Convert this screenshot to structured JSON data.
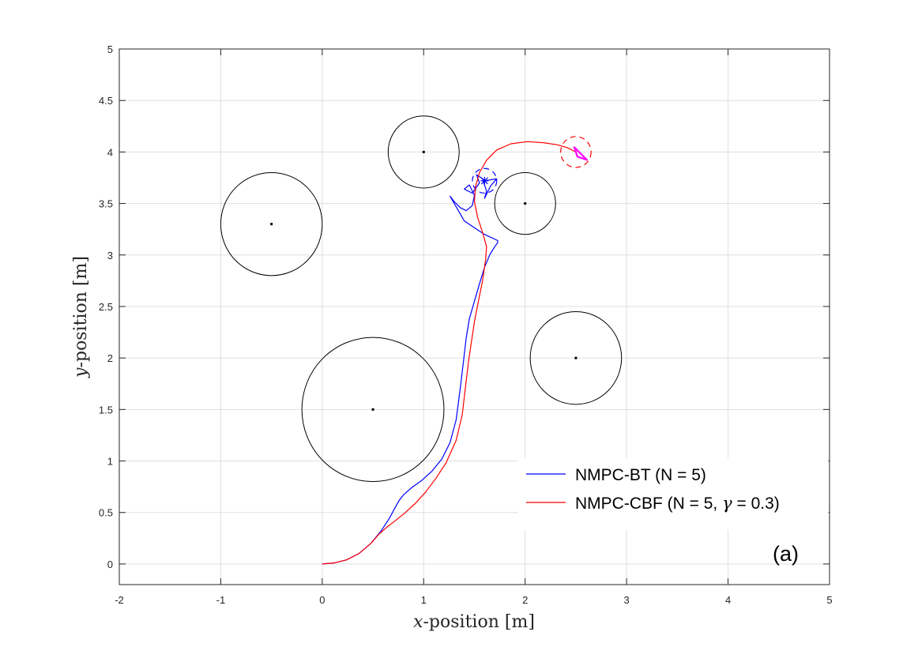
{
  "chart_data": {
    "type": "line",
    "xlabel": {
      "var": "x",
      "rest": "-position [m]"
    },
    "ylabel": {
      "var": "y",
      "rest": "-position [m]"
    },
    "xlim": [
      -2,
      5
    ],
    "ylim": [
      -0.2,
      5
    ],
    "xticks": [
      "-2",
      "-1",
      "0",
      "1",
      "2",
      "3",
      "4",
      "5"
    ],
    "yticks": [
      "0",
      "0.5",
      "1",
      "1.5",
      "2",
      "2.5",
      "3",
      "3.5",
      "4",
      "4.5",
      "5"
    ],
    "xtick_values": [
      -2,
      -1,
      0,
      1,
      2,
      3,
      4,
      5
    ],
    "ytick_values": [
      0,
      0.5,
      1,
      1.5,
      2,
      2.5,
      3,
      3.5,
      4,
      4.5,
      5
    ],
    "grid": true,
    "legend_position": "bottom-right",
    "panel_label": "(a)",
    "obstacles": [
      {
        "center": [
          -0.5,
          3.3
        ],
        "radius": 0.5
      },
      {
        "center": [
          1.0,
          4.0
        ],
        "radius": 0.35
      },
      {
        "center": [
          2.0,
          3.5
        ],
        "radius": 0.3
      },
      {
        "center": [
          0.5,
          1.5
        ],
        "radius": 0.7
      },
      {
        "center": [
          2.5,
          2.0
        ],
        "radius": 0.45
      }
    ],
    "targets": [
      {
        "series": "NMPC-BT (N = 5)",
        "center": [
          1.6,
          3.72
        ],
        "radius": 0.12
      },
      {
        "series": "NMPC-CBF (N = 5, γ = 0.3)",
        "center": [
          2.5,
          4.0
        ],
        "radius": 0.15
      }
    ],
    "series": [
      {
        "name": "NMPC-BT (N = 5)",
        "legend_label": {
          "text": "NMPC-BT (N = 5)"
        },
        "color": "#0000ff",
        "x": [
          0.0,
          0.12,
          0.24,
          0.36,
          0.48,
          0.58,
          0.66,
          0.72,
          0.76,
          0.8,
          0.88,
          0.98,
          1.08,
          1.18,
          1.26,
          1.32,
          1.36,
          1.39,
          1.42,
          1.45,
          1.5,
          1.55,
          1.6,
          1.65,
          1.7,
          1.73,
          1.73,
          1.6,
          1.4,
          1.26,
          1.3,
          1.36,
          1.42,
          1.48,
          1.5,
          1.45,
          1.4,
          1.48,
          1.55,
          1.52,
          1.58,
          1.62,
          1.6,
          1.66,
          1.72,
          1.6,
          1.6
        ],
        "y": [
          0.0,
          0.01,
          0.04,
          0.1,
          0.2,
          0.32,
          0.44,
          0.55,
          0.62,
          0.67,
          0.74,
          0.81,
          0.9,
          1.02,
          1.18,
          1.4,
          1.7,
          1.95,
          2.2,
          2.38,
          2.55,
          2.72,
          2.88,
          3.0,
          3.08,
          3.12,
          3.14,
          3.2,
          3.33,
          3.57,
          3.52,
          3.46,
          3.43,
          3.48,
          3.58,
          3.68,
          3.64,
          3.6,
          3.7,
          3.78,
          3.74,
          3.62,
          3.55,
          3.67,
          3.74,
          3.72,
          3.72
        ]
      },
      {
        "name": "NMPC-CBF (N = 5, γ = 0.3)",
        "legend_label": {
          "pre": "NMPC-CBF (N = 5, ",
          "sym": "γ",
          "post": " = 0.3)"
        },
        "color": "#ff0000",
        "x": [
          0.0,
          0.12,
          0.24,
          0.36,
          0.48,
          0.56,
          0.64,
          0.72,
          0.82,
          0.92,
          1.02,
          1.12,
          1.22,
          1.32,
          1.38,
          1.41,
          1.44,
          1.47,
          1.5,
          1.54,
          1.58,
          1.61,
          1.62,
          1.58,
          1.53,
          1.5,
          1.51,
          1.55,
          1.62,
          1.72,
          1.86,
          2.02,
          2.18,
          2.32,
          2.42,
          2.48,
          2.5
        ],
        "y": [
          0.0,
          0.01,
          0.04,
          0.1,
          0.2,
          0.29,
          0.36,
          0.42,
          0.5,
          0.59,
          0.7,
          0.83,
          0.98,
          1.2,
          1.45,
          1.7,
          1.95,
          2.15,
          2.35,
          2.55,
          2.75,
          2.95,
          3.08,
          3.22,
          3.37,
          3.52,
          3.66,
          3.8,
          3.92,
          4.02,
          4.08,
          4.1,
          4.09,
          4.07,
          4.04,
          4.01,
          4.0
        ]
      }
    ]
  }
}
